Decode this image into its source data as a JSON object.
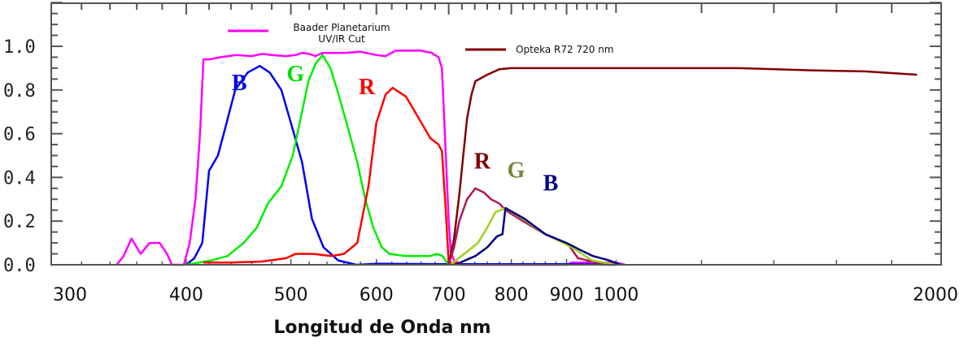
{
  "chart_data": {
    "type": "line",
    "title": "",
    "xlabel": "Longitud de Onda nm",
    "ylabel": "",
    "xscale": "log",
    "xlim": [
      300,
      2000
    ],
    "ylim": [
      0,
      1.2
    ],
    "xticks": [
      300,
      400,
      500,
      600,
      700,
      800,
      900,
      1000,
      2000
    ],
    "xtick_labels": [
      "300",
      "400",
      "500",
      "600",
      "700",
      "800",
      "900",
      "1000",
      "2000"
    ],
    "yticks": [
      0,
      0.2,
      0.4,
      0.6,
      0.8,
      1.0
    ],
    "ytick_labels": [
      "0.0",
      "0.2",
      "0.4",
      "0.6",
      "0.8",
      "1.0"
    ],
    "legend": [
      {
        "label_line1": "Baader Planetarium",
        "label_line2": "UV/IR Cut",
        "color": "#ff00ff"
      },
      {
        "label_line1": "Opteka R72 720 nm",
        "color": "#800000"
      }
    ],
    "annotations": [
      {
        "text": "B",
        "color": "#0000ee",
        "at": [
          448,
          0.8
        ]
      },
      {
        "text": "G",
        "color": "#00dd00",
        "at": [
          505,
          0.84
        ]
      },
      {
        "text": "R",
        "color": "#ff0000",
        "at": [
          588,
          0.78
        ]
      },
      {
        "text": "R",
        "color": "#800000",
        "at": [
          752,
          0.44
        ]
      },
      {
        "text": "G",
        "color": "#808040",
        "at": [
          808,
          0.4
        ]
      },
      {
        "text": "B",
        "color": "#000080",
        "at": [
          870,
          0.34
        ]
      }
    ],
    "series": [
      {
        "name": "Baader Planetarium UV/IR Cut",
        "color": "#ff00ff",
        "x": [
          345,
          350,
          356,
          363,
          370,
          378,
          384,
          388,
          398,
          403,
          408,
          412,
          415,
          420,
          430,
          445,
          460,
          470,
          480,
          495,
          505,
          512,
          520,
          527,
          535,
          560,
          580,
          600,
          612,
          625,
          660,
          675,
          685,
          690,
          695,
          700,
          703,
          708,
          720,
          900,
          910,
          1000,
          1020
        ],
        "y": [
          0,
          0.04,
          0.12,
          0.05,
          0.1,
          0.1,
          0.05,
          0,
          0,
          0.1,
          0.3,
          0.6,
          0.94,
          0.94,
          0.95,
          0.96,
          0.955,
          0.965,
          0.96,
          0.955,
          0.96,
          0.97,
          0.965,
          0.955,
          0.97,
          0.97,
          0.975,
          0.96,
          0.955,
          0.98,
          0.98,
          0.97,
          0.95,
          0.9,
          0.55,
          0.2,
          0.06,
          0.02,
          0,
          0,
          0.01,
          0.01,
          0
        ]
      },
      {
        "name": "B",
        "color": "#0000ee",
        "x": [
          400,
          407,
          414,
          420,
          428,
          436,
          444,
          456,
          468,
          478,
          490,
          500,
          512,
          523,
          536,
          553,
          575,
          600,
          700,
          760,
          800,
          900,
          1000
        ],
        "y": [
          0,
          0.03,
          0.1,
          0.43,
          0.5,
          0.65,
          0.8,
          0.88,
          0.91,
          0.88,
          0.8,
          0.65,
          0.47,
          0.21,
          0.08,
          0.02,
          0,
          0.005,
          0.003,
          0.003,
          0.003,
          0.003,
          0
        ]
      },
      {
        "name": "G",
        "color": "#00ee00",
        "x": [
          400,
          422,
          437,
          452,
          465,
          476,
          490,
          502,
          512,
          519,
          527,
          535,
          544,
          552,
          563,
          576,
          586,
          596,
          607,
          617,
          639,
          673,
          682,
          691,
          700
        ],
        "y": [
          0,
          0.02,
          0.04,
          0.1,
          0.17,
          0.28,
          0.36,
          0.5,
          0.7,
          0.84,
          0.92,
          0.96,
          0.9,
          0.8,
          0.65,
          0.47,
          0.3,
          0.17,
          0.08,
          0.05,
          0.04,
          0.04,
          0.05,
          0.04,
          0
        ]
      },
      {
        "name": "R",
        "color": "#ff0000",
        "x": [
          415,
          440,
          470,
          495,
          505,
          525,
          545,
          560,
          576,
          590,
          600,
          612,
          621,
          639,
          655,
          673,
          685,
          690,
          695,
          700,
          720
        ],
        "y": [
          0.01,
          0.01,
          0.015,
          0.03,
          0.05,
          0.05,
          0.04,
          0.05,
          0.1,
          0.36,
          0.65,
          0.78,
          0.81,
          0.77,
          0.68,
          0.58,
          0.55,
          0.52,
          0.28,
          0.01,
          0.005
        ]
      },
      {
        "name": "Opteka R72 720 nm",
        "color": "#800000",
        "x": [
          700,
          708,
          716,
          722,
          728,
          735,
          741,
          760,
          780,
          800,
          1000,
          1300,
          1519,
          1700,
          1900
        ],
        "y": [
          0,
          0.12,
          0.32,
          0.5,
          0.67,
          0.78,
          0.84,
          0.87,
          0.895,
          0.9,
          0.9,
          0.9,
          0.89,
          0.885,
          0.87
        ]
      },
      {
        "name": "R (IR)",
        "color": "#b0185a",
        "x": [
          700,
          708,
          716,
          728,
          741,
          755,
          766,
          780,
          790,
          820,
          860,
          904,
          922,
          960,
          1000
        ],
        "y": [
          0,
          0.08,
          0.2,
          0.3,
          0.35,
          0.33,
          0.3,
          0.28,
          0.25,
          0.2,
          0.14,
          0.09,
          0.03,
          0.01,
          0
        ]
      },
      {
        "name": "G (IR)",
        "color": "#a0d020",
        "x": [
          703,
          715,
          728,
          745,
          760,
          773,
          790,
          820,
          860,
          910,
          950,
          1000
        ],
        "y": [
          0,
          0.03,
          0.06,
          0.1,
          0.17,
          0.24,
          0.26,
          0.21,
          0.14,
          0.08,
          0.02,
          0
        ]
      },
      {
        "name": "B (IR)",
        "color": "#000080",
        "x": [
          710,
          725,
          741,
          760,
          776,
          785,
          790,
          823,
          860,
          900,
          925,
          952,
          985,
          1010
        ],
        "y": [
          0,
          0.02,
          0.04,
          0.08,
          0.13,
          0.14,
          0.26,
          0.21,
          0.14,
          0.1,
          0.07,
          0.04,
          0.02,
          0
        ]
      }
    ]
  }
}
